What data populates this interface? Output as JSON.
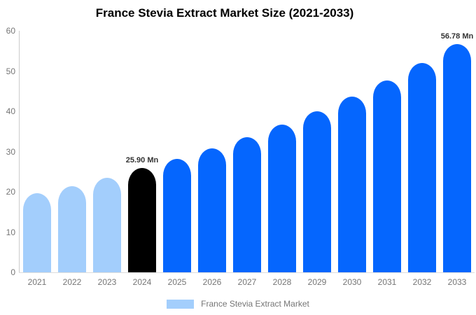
{
  "title": "France Stevia Extract Market Size (2021-2033)",
  "colors": {
    "past_bar": "#a3cefc",
    "current_bar": "#000000",
    "forecast_bar": "#0566fe",
    "axis_line": "#cccccc",
    "axis_text": "#757575",
    "value_label_text": "#333333",
    "background": "#ffffff"
  },
  "chart_data": {
    "type": "bar",
    "title": "France Stevia Extract Market Size (2021-2033)",
    "categories": [
      "2021",
      "2022",
      "2023",
      "2024",
      "2025",
      "2026",
      "2027",
      "2028",
      "2029",
      "2030",
      "2031",
      "2032",
      "2033"
    ],
    "values": [
      19.6,
      21.4,
      23.5,
      25.9,
      28.2,
      30.8,
      33.6,
      36.7,
      40.0,
      43.7,
      47.7,
      52.0,
      56.78
    ],
    "bar_colors": [
      "#a3cefc",
      "#a3cefc",
      "#a3cefc",
      "#000000",
      "#0566fe",
      "#0566fe",
      "#0566fe",
      "#0566fe",
      "#0566fe",
      "#0566fe",
      "#0566fe",
      "#0566fe",
      "#0566fe"
    ],
    "annotations": [
      {
        "index": 3,
        "text": "25.90 Mn"
      },
      {
        "index": 12,
        "text": "56.78 Mn"
      }
    ],
    "xlabel": "",
    "ylabel": "",
    "ylim": [
      0,
      60
    ],
    "yticks": [
      0,
      10,
      20,
      30,
      40,
      50,
      60
    ],
    "grid": false,
    "legend_position": "bottom",
    "legend": [
      {
        "label": "France Stevia Extract Market",
        "color": "#a3cefc"
      }
    ]
  }
}
